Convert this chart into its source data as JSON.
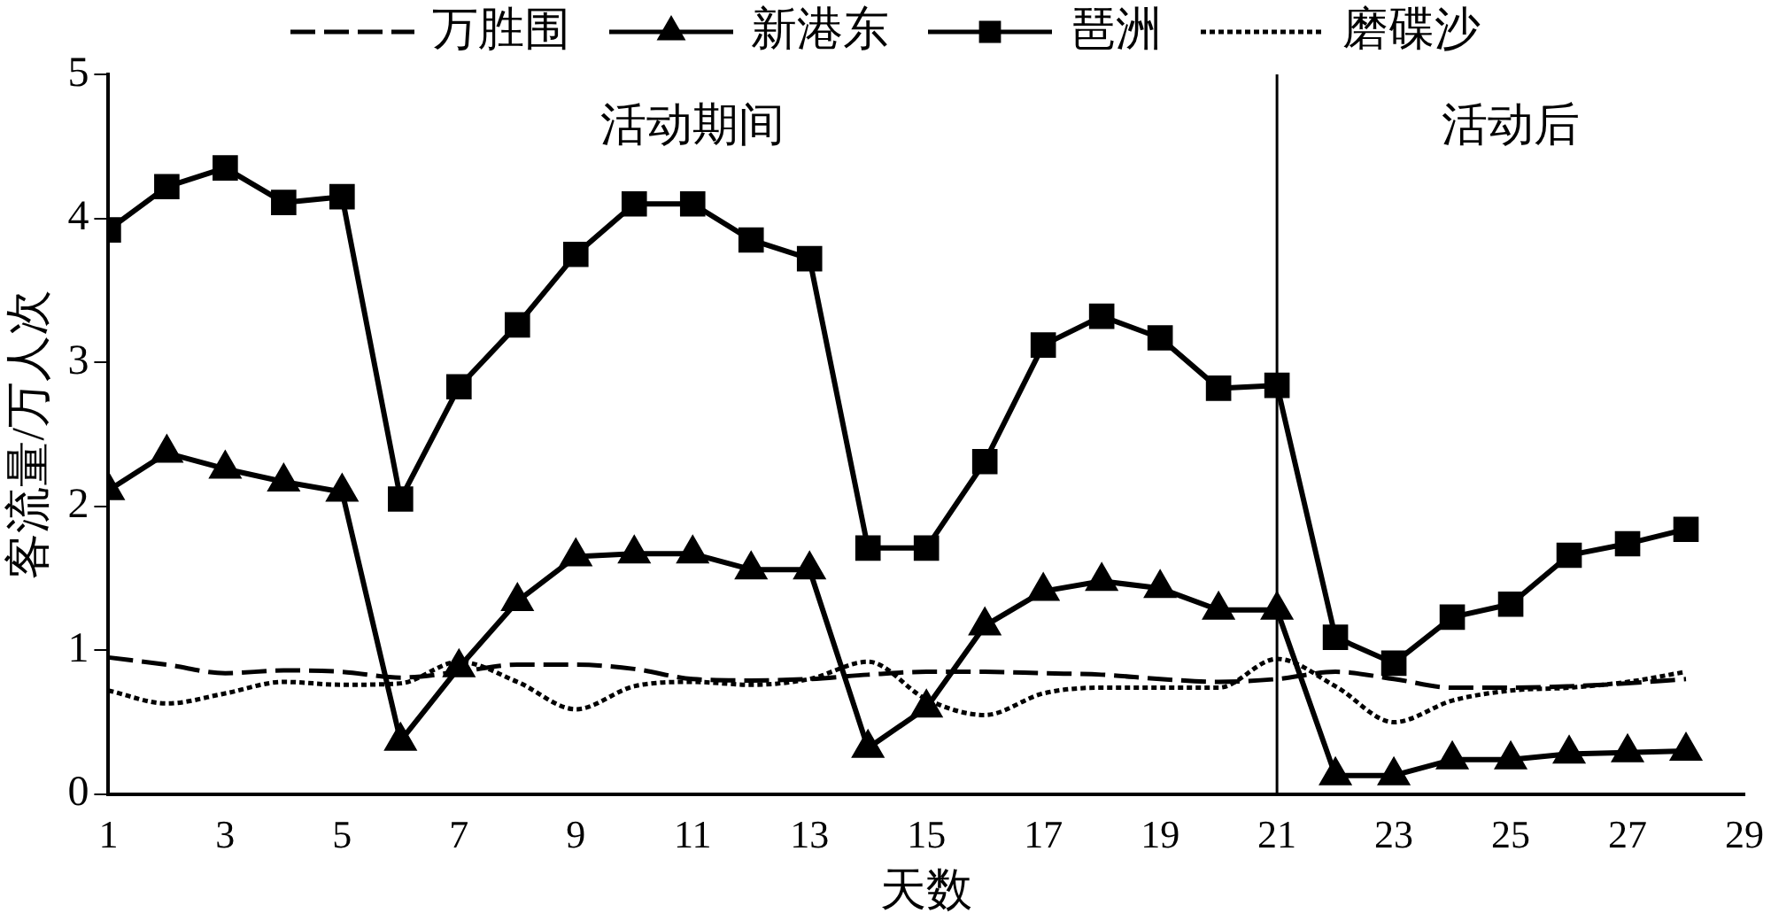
{
  "chart_data": {
    "type": "line",
    "xlabel": "天数",
    "ylabel": "客流量/万人次",
    "x": [
      1,
      2,
      3,
      4,
      5,
      6,
      7,
      8,
      9,
      10,
      11,
      12,
      13,
      14,
      15,
      16,
      17,
      18,
      19,
      20,
      21,
      22,
      23,
      24,
      25,
      26,
      27,
      28
    ],
    "xlim": [
      1,
      29
    ],
    "xticks": [
      1,
      3,
      5,
      7,
      9,
      11,
      13,
      15,
      17,
      19,
      21,
      23,
      25,
      27,
      29
    ],
    "ylim": [
      0,
      5
    ],
    "yticks": [
      0,
      1,
      2,
      3,
      4,
      5
    ],
    "grid": false,
    "legend": "top",
    "series": [
      {
        "name": "万胜围",
        "color": "#000000",
        "line_style": "dashed",
        "marker": "none",
        "values": [
          0.95,
          0.9,
          0.84,
          0.86,
          0.85,
          0.81,
          0.85,
          0.9,
          0.9,
          0.87,
          0.8,
          0.79,
          0.8,
          0.83,
          0.85,
          0.85,
          0.84,
          0.83,
          0.8,
          0.78,
          0.8,
          0.85,
          0.8,
          0.74,
          0.74,
          0.75,
          0.77,
          0.8
        ]
      },
      {
        "name": "新港东",
        "color": "#000000",
        "line_style": "solid",
        "marker": "triangle",
        "values": [
          2.11,
          2.37,
          2.26,
          2.17,
          2.1,
          0.37,
          0.88,
          1.34,
          1.65,
          1.67,
          1.67,
          1.56,
          1.56,
          0.32,
          0.6,
          1.17,
          1.41,
          1.48,
          1.43,
          1.28,
          1.28,
          0.13,
          0.13,
          0.24,
          0.24,
          0.28,
          0.29,
          0.3
        ]
      },
      {
        "name": "琶洲",
        "color": "#000000",
        "line_style": "solid",
        "marker": "square",
        "values": [
          3.92,
          4.22,
          4.35,
          4.11,
          4.15,
          2.05,
          2.83,
          3.26,
          3.75,
          4.1,
          4.1,
          3.85,
          3.72,
          1.71,
          1.71,
          2.31,
          3.12,
          3.32,
          3.17,
          2.82,
          2.84,
          1.09,
          0.91,
          1.23,
          1.32,
          1.66,
          1.74,
          1.84
        ]
      },
      {
        "name": "磨碟沙",
        "color": "#000000",
        "line_style": "dotted",
        "marker": "none",
        "values": [
          0.72,
          0.63,
          0.7,
          0.78,
          0.76,
          0.77,
          0.92,
          0.78,
          0.59,
          0.75,
          0.78,
          0.76,
          0.8,
          0.92,
          0.66,
          0.55,
          0.7,
          0.74,
          0.74,
          0.74,
          0.94,
          0.75,
          0.5,
          0.65,
          0.72,
          0.74,
          0.78,
          0.85
        ]
      }
    ],
    "ref_lines": [
      {
        "axis": "x",
        "value": 21,
        "color": "#000000"
      }
    ],
    "annotations": [
      "活动期间",
      "活动后"
    ]
  }
}
